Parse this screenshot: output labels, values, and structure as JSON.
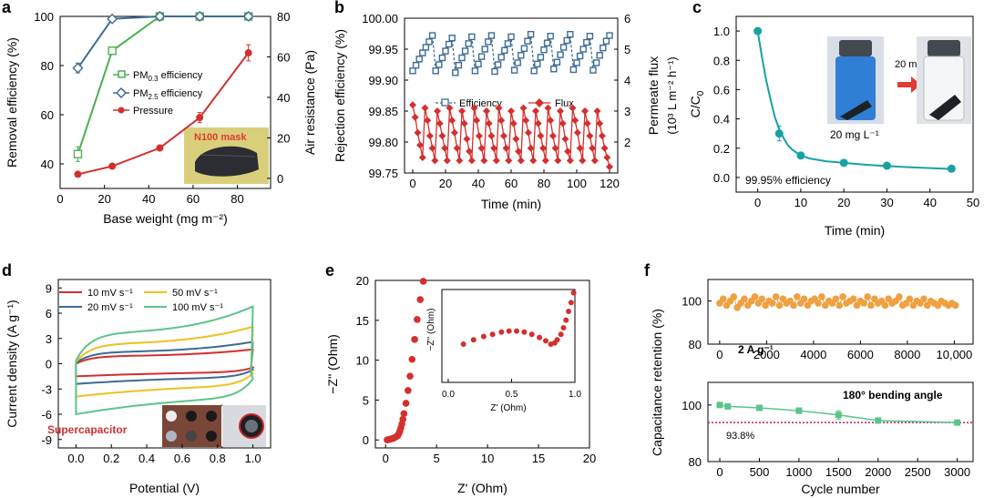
{
  "chart_data": [
    {
      "id": "a",
      "panel_label": "a",
      "type": "line",
      "xlabel": "Base weight (mg m⁻²)",
      "ylabel": "Removal efficiency (%)",
      "y2label": "Air resistance (Pa)",
      "xlim": [
        0,
        95
      ],
      "ylim": [
        30,
        100
      ],
      "y2lim": [
        -5,
        80
      ],
      "xticks": [
        0,
        20,
        40,
        60,
        80
      ],
      "yticks": [
        40,
        60,
        80,
        100
      ],
      "y2ticks": [
        0,
        20,
        40,
        60,
        80
      ],
      "series": [
        {
          "name": "PM0.3 efficiency",
          "axis": "left",
          "color": "#4caf50",
          "marker": "square-open",
          "x": [
            8,
            23.5,
            45,
            63,
            85
          ],
          "y": [
            44,
            86,
            100,
            100,
            100
          ],
          "err": [
            3,
            1.5,
            0.5,
            0.5,
            0.5
          ]
        },
        {
          "name": "PM2.5 efficiency",
          "axis": "left",
          "color": "#3d6b93",
          "marker": "diamond-open",
          "x": [
            8,
            23.5,
            45,
            63,
            85
          ],
          "y": [
            79,
            99,
            100,
            100,
            100
          ],
          "err": [
            2,
            0.5,
            0.3,
            0.3,
            0.3
          ]
        },
        {
          "name": "Pressure",
          "axis": "right",
          "color": "#d32f2f",
          "marker": "circle",
          "x": [
            8,
            23.5,
            45,
            63,
            85
          ],
          "y": [
            2,
            6,
            15,
            30,
            62
          ],
          "err": [
            1,
            1,
            1,
            2.5,
            4
          ]
        }
      ],
      "legend": [
        "PM",
        "efficiency",
        "PM",
        "efficiency",
        "Pressure"
      ],
      "legend_sub": [
        "0.3",
        "2.5"
      ],
      "inset_label": "N100 mask"
    },
    {
      "id": "b",
      "panel_label": "b",
      "type": "line",
      "xlabel": "Time (min)",
      "ylabel": "Rejection efficiency (%)",
      "y2label": "Permeate flux",
      "y2label_line2": "(10³ L m⁻² h⁻¹)",
      "xlim": [
        -5,
        125
      ],
      "ylim": [
        99.75,
        100.0
      ],
      "y2lim": [
        1.0,
        6.0
      ],
      "xticks": [
        0,
        20,
        40,
        60,
        80,
        100,
        120
      ],
      "yticks": [
        99.75,
        99.8,
        99.85,
        99.9,
        99.95,
        100.0
      ],
      "ytick_labels": [
        "99.75",
        "99.80",
        "99.85",
        "99.90",
        "99.95",
        "100.00"
      ],
      "y2ticks": [
        2,
        3,
        4,
        5,
        6
      ],
      "series": [
        {
          "name": "Efficiency",
          "axis": "left",
          "color": "#3d6b93",
          "marker": "square-open",
          "x": [
            0,
            2,
            4,
            6,
            8,
            10,
            12,
            14,
            16,
            18,
            20,
            22,
            24,
            26,
            28,
            30,
            32,
            34,
            36,
            38,
            40,
            42,
            44,
            46,
            48,
            50,
            52,
            54,
            56,
            58,
            60,
            62,
            64,
            66,
            68,
            70,
            72,
            74,
            76,
            78,
            80,
            82,
            84,
            86,
            88,
            90,
            92,
            94,
            96,
            98,
            100,
            102,
            104,
            106,
            108,
            110,
            112,
            114,
            116,
            118,
            120
          ],
          "y": [
            99.915,
            99.924,
            99.934,
            99.944,
            99.953,
            99.962,
            99.972,
            99.915,
            99.925,
            99.936,
            99.947,
            99.958,
            99.968,
            99.912,
            99.924,
            99.936,
            99.947,
            99.959,
            99.97,
            99.915,
            99.926,
            99.938,
            99.95,
            99.962,
            99.972,
            99.914,
            99.925,
            99.937,
            99.948,
            99.959,
            99.97,
            99.916,
            99.928,
            99.94,
            99.951,
            99.963,
            99.974,
            99.915,
            99.926,
            99.937,
            99.949,
            99.96,
            99.971,
            99.918,
            99.929,
            99.941,
            99.953,
            99.964,
            99.974,
            99.917,
            99.928,
            99.939,
            99.95,
            99.961,
            99.971,
            99.916,
            99.928,
            99.94,
            99.952,
            99.963,
            99.972
          ]
        },
        {
          "name": "Flux",
          "axis": "right",
          "color": "#d32f2f",
          "marker": "diamond",
          "x": [
            0,
            1.5,
            3,
            4.5,
            6,
            7.5,
            9,
            10.5,
            12,
            13.5,
            15,
            16.5,
            18,
            19.5,
            21,
            22.5,
            24,
            25.5,
            27,
            28.5,
            30,
            31.5,
            33,
            34.5,
            36,
            37.5,
            39,
            40.5,
            42,
            43.5,
            45,
            46.5,
            48,
            49.5,
            51,
            52.5,
            54,
            55.5,
            57,
            58.5,
            60,
            61.5,
            63,
            64.5,
            66,
            67.5,
            69,
            70.5,
            72,
            73.5,
            75,
            76.5,
            78,
            79.5,
            81,
            82.5,
            84,
            85.5,
            87,
            88.5,
            90,
            91.5,
            93,
            94.5,
            96,
            97.5,
            99,
            100.5,
            102,
            103.5,
            105,
            106.5,
            108,
            109.5,
            111,
            112.5,
            114,
            115.5,
            117,
            118.5,
            120
          ],
          "y": [
            3.2,
            2.8,
            2.3,
            1.9,
            1.5,
            3.1,
            2.7,
            2.2,
            1.8,
            1.4,
            3.0,
            2.6,
            2.2,
            1.8,
            1.4,
            3.1,
            2.7,
            2.3,
            1.8,
            1.4,
            3.0,
            2.6,
            2.1,
            1.7,
            1.4,
            3.1,
            2.7,
            2.2,
            1.8,
            1.4,
            3.0,
            2.6,
            2.2,
            1.8,
            1.4,
            3.1,
            2.7,
            2.2,
            1.8,
            1.4,
            3.0,
            2.6,
            2.1,
            1.7,
            1.4,
            3.1,
            2.7,
            2.3,
            1.8,
            1.4,
            3.0,
            2.6,
            2.2,
            1.8,
            1.4,
            3.1,
            2.7,
            2.2,
            1.8,
            1.4,
            3.0,
            2.6,
            2.1,
            1.7,
            1.4,
            3.1,
            2.7,
            2.3,
            1.8,
            1.4,
            3.0,
            2.6,
            2.2,
            1.8,
            1.4,
            3.0,
            2.6,
            2.2,
            1.8,
            1.5,
            1.2
          ]
        }
      ],
      "legend": [
        "Efficiency",
        "Flux"
      ]
    },
    {
      "id": "c",
      "panel_label": "c",
      "type": "scatter",
      "xlabel": "Time (min)",
      "ylabel": "C/C",
      "ylabel_sub": "0",
      "xlim": [
        -5,
        50
      ],
      "ylim": [
        -0.1,
        1.1
      ],
      "xticks": [
        0,
        10,
        20,
        30,
        40,
        50
      ],
      "yticks": [
        0.0,
        0.2,
        0.4,
        0.6,
        0.8,
        1.0
      ],
      "ytick_labels": [
        "0.0",
        "0.2",
        "0.4",
        "0.6",
        "0.8",
        "1.0"
      ],
      "series": [
        {
          "name": "C/C0",
          "color": "#16a2a2",
          "marker": "circle",
          "x": [
            0,
            5,
            10,
            20,
            30,
            45
          ],
          "y": [
            1.0,
            0.3,
            0.15,
            0.1,
            0.08,
            0.06
          ],
          "err": [
            0.01,
            0.05,
            0.02,
            0.02,
            0.01,
            0.01
          ]
        }
      ],
      "fit_x": [
        0,
        1,
        2,
        3,
        4,
        5,
        6,
        7,
        8,
        9,
        10,
        12,
        14,
        16,
        18,
        20,
        23,
        26,
        30,
        35,
        40,
        45
      ],
      "fit_y": [
        1.0,
        0.82,
        0.66,
        0.53,
        0.41,
        0.33,
        0.27,
        0.22,
        0.19,
        0.17,
        0.15,
        0.13,
        0.12,
        0.11,
        0.105,
        0.1,
        0.092,
        0.085,
        0.078,
        0.07,
        0.064,
        0.058
      ],
      "annotation": "99.95% efficiency",
      "inset_conc": "20 mg L⁻¹",
      "inset_time": "20 min"
    },
    {
      "id": "d",
      "panel_label": "d",
      "type": "line",
      "xlabel": "Potential (V)",
      "ylabel": "Current density (A g⁻¹)",
      "xlim": [
        -0.1,
        1.1
      ],
      "ylim": [
        -10,
        10
      ],
      "xticks": [
        0.0,
        0.2,
        0.4,
        0.6,
        0.8,
        1.0
      ],
      "xtick_labels": [
        "0.0",
        "0.2",
        "0.4",
        "0.6",
        "0.8",
        "1.0"
      ],
      "yticks": [
        -9,
        -6,
        -3,
        0,
        3,
        6,
        9
      ],
      "series": [
        {
          "name": "10 mV s⁻¹",
          "color": "#d32f2f",
          "top": 1.7,
          "bottom": -1.5,
          "start": 0.0,
          "tipTop": 1.8
        },
        {
          "name": "20 mV s⁻¹",
          "color": "#3d6b93",
          "top": 2.6,
          "bottom": -2.4,
          "start": 0.1,
          "tipTop": 2.6
        },
        {
          "name": "50 mV s⁻¹",
          "color": "#f0c020",
          "top": 4.4,
          "bottom": -3.9,
          "start": 0.2,
          "tipTop": 4.4
        },
        {
          "name": "100 mV s⁻¹",
          "color": "#5cc48a",
          "top": 6.8,
          "bottom": -6.0,
          "start": 0.4,
          "tipTop": 6.9
        }
      ],
      "inset_label": "Supercapacitor"
    },
    {
      "id": "e",
      "panel_label": "e",
      "type": "scatter",
      "xlabel": "Z' (Ohm)",
      "ylabel": "−Z'' (Ohm)",
      "xlim": [
        -1,
        20
      ],
      "ylim": [
        -1,
        20
      ],
      "xticks": [
        0,
        5,
        10,
        15,
        20
      ],
      "yticks": [
        0,
        5,
        10,
        15,
        20
      ],
      "series": [
        {
          "name": "Nyquist",
          "color": "#d32f2f",
          "marker": "circle",
          "x": [
            0.15,
            0.3,
            0.45,
            0.6,
            0.75,
            0.9,
            1.05,
            1.2,
            1.3,
            1.4,
            1.5,
            1.6,
            1.7,
            1.8,
            2.0,
            2.2,
            2.4,
            2.6,
            2.85,
            3.1,
            3.4,
            3.7
          ],
          "y": [
            0.0,
            0.05,
            0.1,
            0.15,
            0.2,
            0.3,
            0.4,
            0.55,
            0.8,
            1.1,
            1.5,
            2.0,
            2.6,
            3.3,
            4.6,
            6.2,
            8.0,
            10.1,
            12.6,
            15.1,
            17.6,
            19.9
          ]
        }
      ],
      "inset": {
        "xlabel": "Z' (Ohm)",
        "ylabel": "−Z'' (Ohm)",
        "xlim": [
          -0.05,
          1.0
        ],
        "ylim": [
          -0.35,
          0.5
        ],
        "xticks": [
          0.0,
          0.5,
          1.0
        ],
        "xtick_labels": [
          "0.0",
          "0.5",
          "1.0"
        ],
        "x": [
          0.12,
          0.2,
          0.28,
          0.35,
          0.42,
          0.48,
          0.54,
          0.6,
          0.66,
          0.72,
          0.77,
          0.81,
          0.84,
          0.86,
          0.89,
          0.91,
          0.93,
          0.95,
          0.97,
          0.99
        ],
        "y": [
          0.0,
          0.04,
          0.07,
          0.09,
          0.11,
          0.12,
          0.12,
          0.11,
          0.09,
          0.06,
          0.03,
          0.0,
          0.01,
          0.04,
          0.09,
          0.15,
          0.22,
          0.3,
          0.38,
          0.47
        ]
      }
    },
    {
      "id": "f1",
      "panel_label": "f",
      "type": "scatter",
      "ylabel": "Capacitance retention (%)",
      "xlim": [
        -500,
        10800
      ],
      "ylim": [
        80,
        110
      ],
      "xticks": [
        0,
        2000,
        4000,
        6000,
        8000,
        10000
      ],
      "xtick_labels": [
        "0",
        "2000",
        "4000",
        "6000",
        "8000",
        "10,000"
      ],
      "yticks": [
        80,
        100
      ],
      "series": [
        {
          "name": "2 A g⁻¹",
          "color": "#f0a040",
          "marker": "circle",
          "x": [
            0,
            150,
            300,
            450,
            600,
            750,
            900,
            1050,
            1200,
            1350,
            1500,
            1650,
            1800,
            1950,
            2100,
            2250,
            2400,
            2550,
            2700,
            2850,
            3000,
            3150,
            3300,
            3450,
            3600,
            3750,
            3900,
            4050,
            4200,
            4350,
            4500,
            4650,
            4800,
            4950,
            5100,
            5250,
            5400,
            5550,
            5700,
            5850,
            6000,
            6150,
            6300,
            6450,
            6600,
            6750,
            6900,
            7050,
            7200,
            7350,
            7500,
            7650,
            7800,
            7950,
            8100,
            8250,
            8400,
            8550,
            8700,
            8850,
            9000,
            9150,
            9300,
            9450,
            9600,
            9750,
            9900,
            10050
          ],
          "y": [
            99,
            101,
            98,
            100,
            102,
            97,
            99,
            101,
            98,
            100,
            102,
            99,
            101,
            98,
            100,
            99,
            102,
            98,
            101,
            99,
            100,
            98,
            102,
            99,
            101,
            98,
            100,
            101,
            99,
            102,
            98,
            100,
            99,
            101,
            98,
            102,
            99,
            100,
            101,
            98,
            100,
            99,
            102,
            98,
            101,
            99,
            100,
            98,
            101,
            99,
            100,
            102,
            98,
            99,
            101,
            98,
            100,
            99,
            101,
            98,
            100,
            99,
            98,
            100,
            99,
            98,
            99,
            98
          ]
        }
      ],
      "annotation": "2 A g⁻¹"
    },
    {
      "id": "f2",
      "panel_label": "",
      "type": "line",
      "xlabel": "Cycle number",
      "ylabel": "Capacitance retention (%)",
      "xlim": [
        -150,
        3200
      ],
      "ylim": [
        80,
        108
      ],
      "xticks": [
        0,
        500,
        1000,
        1500,
        2000,
        2500,
        3000
      ],
      "yticks": [
        80,
        100
      ],
      "series": [
        {
          "name": "180° bending angle",
          "color": "#5cc48a",
          "marker": "square",
          "x": [
            0,
            100,
            500,
            1000,
            1500,
            2000,
            3000
          ],
          "y": [
            100,
            99.5,
            99,
            98,
            96.5,
            94.5,
            93.8
          ],
          "err": [
            0.3,
            0.3,
            0.4,
            1.0,
            1.5,
            0.5,
            0.5
          ]
        }
      ],
      "ref_line": 93.8,
      "annotation": "180° bending angle",
      "ref_label": "93.8%"
    }
  ]
}
